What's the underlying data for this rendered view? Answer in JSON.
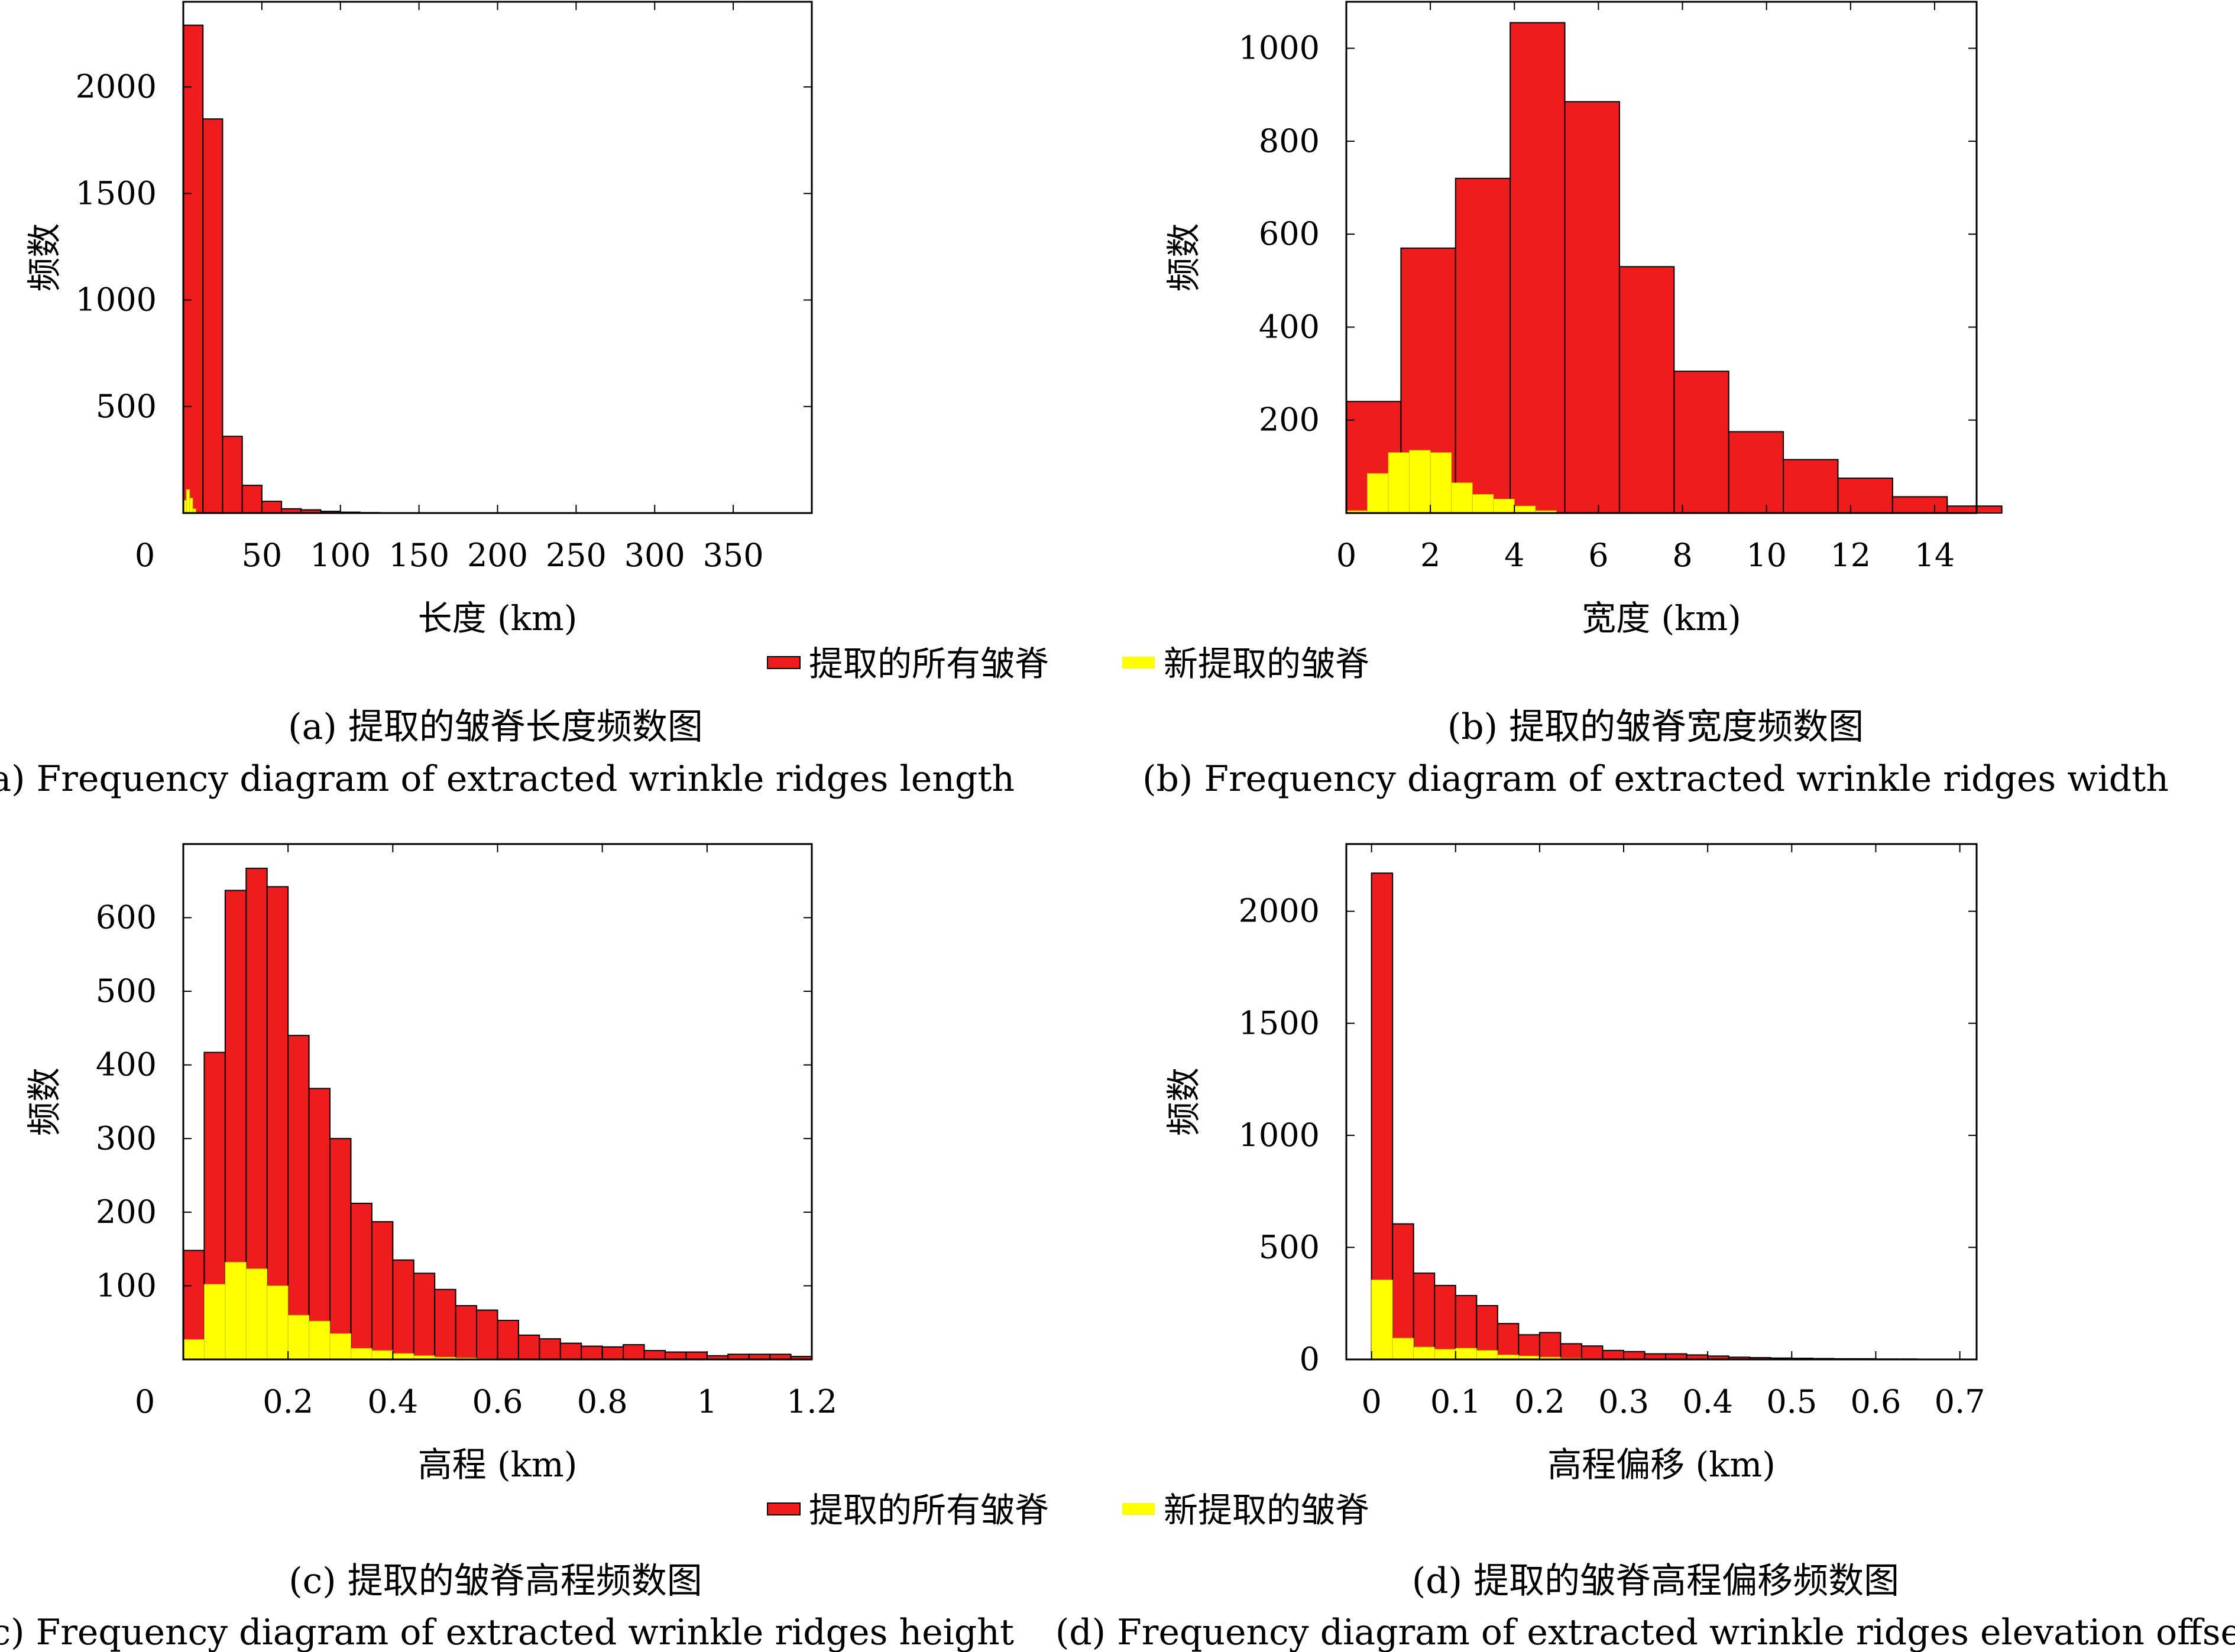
{
  "colors": {
    "all": "#ee1c1c",
    "new": "#ffff00",
    "edge": "#000000"
  },
  "legend": {
    "all_label": "提取的所有皱脊",
    "new_label": "新提取的皱脊"
  },
  "panels": {
    "a": {
      "caption_zh": "(a) 提取的皱脊长度频数图",
      "caption_en": "(a) Frequency diagram of extracted wrinkle ridges length"
    },
    "b": {
      "caption_zh": "(b) 提取的皱脊宽度频数图",
      "caption_en": "(b) Frequency diagram of extracted wrinkle ridges width"
    },
    "c": {
      "caption_zh": "(c) 提取的皱脊高程频数图",
      "caption_en": "(c) Frequency diagram of extracted wrinkle ridges height"
    },
    "d": {
      "caption_zh": "(d) 提取的皱脊高程偏移频数图",
      "caption_en": "(d) Frequency diagram of extracted wrinkle ridges elevation offset"
    }
  },
  "chart_data": [
    {
      "id": "a",
      "type": "bar",
      "xlabel": "长度 (km)",
      "ylabel": "频数",
      "xlim": [
        0,
        400
      ],
      "ylim": [
        0,
        2400
      ],
      "xticks": [
        0,
        50,
        100,
        150,
        200,
        250,
        300,
        350
      ],
      "yticks": [
        500,
        1000,
        1500,
        2000
      ],
      "bin_width": 12.5,
      "series": [
        {
          "name": "提取的所有皱脊",
          "bin_starts": [
            0,
            12.5,
            25,
            37.5,
            50,
            62.5,
            75,
            87.5,
            100,
            112.5
          ],
          "values": [
            2290,
            1850,
            360,
            130,
            55,
            20,
            15,
            8,
            4,
            2
          ]
        },
        {
          "name": "新提取的皱脊",
          "bin_starts": [
            0,
            2,
            4,
            6
          ],
          "bin_widths": [
            2,
            2,
            2,
            2
          ],
          "values": [
            60,
            110,
            70,
            20
          ]
        }
      ],
      "grid": false,
      "legend": "none"
    },
    {
      "id": "b",
      "type": "bar",
      "xlabel": "宽度 (km)",
      "ylabel": "频数",
      "xlim": [
        0,
        15
      ],
      "ylim": [
        0,
        1100
      ],
      "xticks": [
        0,
        2,
        4,
        6,
        8,
        10,
        12,
        14
      ],
      "yticks": [
        200,
        400,
        600,
        800,
        1000
      ],
      "series": [
        {
          "name": "提取的所有皱脊",
          "bin_starts": [
            0,
            1.3,
            2.6,
            3.9,
            5.2,
            6.5,
            7.8,
            9.1,
            10.4,
            11.7,
            13.0,
            14.3
          ],
          "bin_width": 1.3,
          "values": [
            240,
            570,
            720,
            1055,
            885,
            530,
            305,
            175,
            115,
            75,
            35,
            15
          ]
        },
        {
          "name": "新提取的皱脊",
          "bin_starts": [
            0,
            0.5,
            1.0,
            1.5,
            2.0,
            2.5,
            3.0,
            3.5,
            4.0,
            4.5
          ],
          "bin_width": 0.5,
          "values": [
            5,
            85,
            130,
            135,
            130,
            65,
            40,
            30,
            15,
            5
          ]
        }
      ],
      "grid": false,
      "legend": "bottom-center"
    },
    {
      "id": "c",
      "type": "bar",
      "xlabel": "高程 (km)",
      "ylabel": "频数",
      "xlim": [
        0,
        1.2
      ],
      "ylim": [
        0,
        700
      ],
      "xticks": [
        0,
        0.2,
        0.4,
        0.6,
        0.8,
        1.0,
        1.2
      ],
      "yticks": [
        100,
        200,
        300,
        400,
        500,
        600
      ],
      "bin_width": 0.04,
      "series": [
        {
          "name": "提取的所有皱脊",
          "values": [
            148,
            417,
            637,
            667,
            642,
            440,
            368,
            300,
            212,
            187,
            135,
            117,
            95,
            73,
            67,
            53,
            33,
            28,
            22,
            18,
            17,
            20,
            12,
            10,
            10,
            5,
            7,
            7,
            7,
            4
          ]
        },
        {
          "name": "新提取的皱脊",
          "values": [
            27,
            102,
            132,
            123,
            100,
            60,
            52,
            35,
            15,
            12,
            8,
            5,
            3,
            2,
            1,
            0,
            0,
            0,
            0,
            0,
            0,
            0,
            0,
            0,
            0,
            0,
            0,
            0,
            0,
            0
          ]
        }
      ],
      "grid": false,
      "legend": "bottom-center"
    },
    {
      "id": "d",
      "type": "bar",
      "xlabel": "高程偏移 (km)",
      "ylabel": "频数",
      "xlim": [
        -0.03,
        0.72
      ],
      "ylim": [
        0,
        2300
      ],
      "xticks": [
        0,
        0.1,
        0.2,
        0.3,
        0.4,
        0.5,
        0.6,
        0.7
      ],
      "yticks": [
        0,
        500,
        1000,
        1500,
        2000
      ],
      "bin_width": 0.025,
      "series": [
        {
          "name": "提取的所有皱脊",
          "values": [
            2170,
            605,
            385,
            330,
            285,
            240,
            160,
            110,
            120,
            70,
            60,
            40,
            35,
            25,
            25,
            20,
            15,
            10,
            8,
            6,
            5,
            4,
            3,
            3,
            2,
            2,
            1,
            1
          ]
        },
        {
          "name": "新提取的皱脊",
          "values": [
            355,
            95,
            55,
            45,
            50,
            40,
            20,
            15,
            10,
            5,
            3,
            2,
            0,
            0,
            0,
            0,
            0,
            0,
            0,
            0,
            0,
            0,
            0,
            0,
            0,
            0,
            0,
            0
          ]
        }
      ],
      "grid": false,
      "legend": "none"
    }
  ]
}
